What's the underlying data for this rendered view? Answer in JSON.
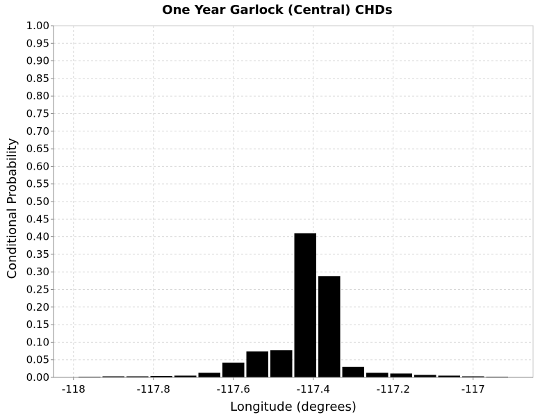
{
  "chart_data": {
    "type": "bar",
    "title": "One Year Garlock (Central) CHDs",
    "xlabel": "Longitude (degrees)",
    "ylabel": "Conditional Probability",
    "xlim": [
      -118.05,
      -116.85
    ],
    "ylim": [
      0,
      1
    ],
    "x_ticks": [
      -118,
      -117.8,
      -117.6,
      -117.4,
      -117.2,
      -117
    ],
    "x_tick_labels": [
      "-118",
      "-117.8",
      "-117.6",
      "-117.4",
      "-117.2",
      "-117"
    ],
    "y_ticks": [
      0,
      0.05,
      0.1,
      0.15,
      0.2,
      0.25,
      0.3,
      0.35,
      0.4,
      0.45,
      0.5,
      0.55,
      0.6,
      0.65,
      0.7,
      0.75,
      0.8,
      0.85,
      0.9,
      0.95,
      1.0
    ],
    "y_tick_labels": [
      "0.00",
      "0.05",
      "0.10",
      "0.15",
      "0.20",
      "0.25",
      "0.30",
      "0.35",
      "0.40",
      "0.45",
      "0.50",
      "0.55",
      "0.60",
      "0.65",
      "0.70",
      "0.75",
      "0.80",
      "0.85",
      "0.90",
      "0.95",
      "1.00"
    ],
    "bin_width": 0.06,
    "x": [
      -118.02,
      -117.96,
      -117.9,
      -117.84,
      -117.78,
      -117.72,
      -117.66,
      -117.6,
      -117.54,
      -117.48,
      -117.42,
      -117.36,
      -117.3,
      -117.24,
      -117.18,
      -117.12,
      -117.06,
      -117.0,
      -116.94,
      -116.88
    ],
    "values": [
      0.001,
      0.002,
      0.003,
      0.003,
      0.004,
      0.005,
      0.013,
      0.042,
      0.074,
      0.077,
      0.41,
      0.288,
      0.03,
      0.013,
      0.011,
      0.007,
      0.005,
      0.003,
      0.002,
      0.001
    ],
    "grid": true,
    "colors": {
      "bar": "#000000",
      "grid": "#d8d8d8",
      "frame": "#c8c8c8"
    }
  }
}
